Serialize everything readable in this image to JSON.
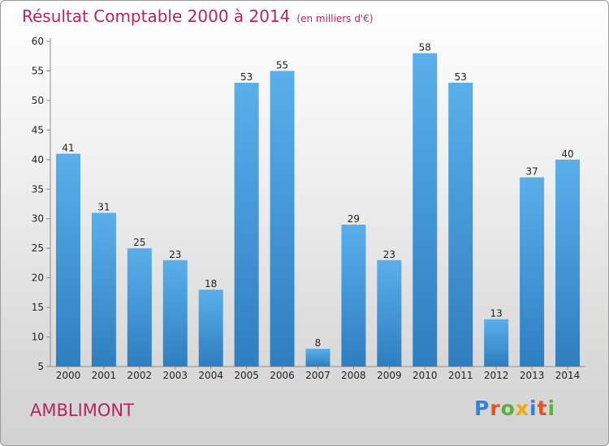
{
  "header": {
    "title": "Résultat Comptable 2000 à 2014",
    "subtitle": "(en milliers d'€)"
  },
  "footer": {
    "commune": "AMBLIMONT",
    "logo": "Proxiti"
  },
  "colors": {
    "title": "#b5265e",
    "bar_top": "#5aafea",
    "bar_bottom": "#2e7ec0",
    "logo": [
      "#3b7fd1",
      "#e8511f",
      "#58b33a",
      "#f2a900",
      "#3b7fd1",
      "#e8511f",
      "#58b33a"
    ]
  },
  "chart_data": {
    "type": "bar",
    "title": "Résultat Comptable 2000 à 2014",
    "subtitle": "(en milliers d'€)",
    "categories": [
      "2000",
      "2001",
      "2002",
      "2003",
      "2004",
      "2005",
      "2006",
      "2007",
      "2008",
      "2009",
      "2010",
      "2011",
      "2012",
      "2013",
      "2014"
    ],
    "values": [
      41,
      31,
      25,
      23,
      18,
      53,
      55,
      8,
      29,
      23,
      58,
      53,
      13,
      37,
      40
    ],
    "ylim": [
      5,
      60
    ],
    "yticks": [
      5,
      10,
      15,
      20,
      25,
      30,
      35,
      40,
      45,
      50,
      55,
      60
    ],
    "grid": false,
    "data_labels": true
  }
}
